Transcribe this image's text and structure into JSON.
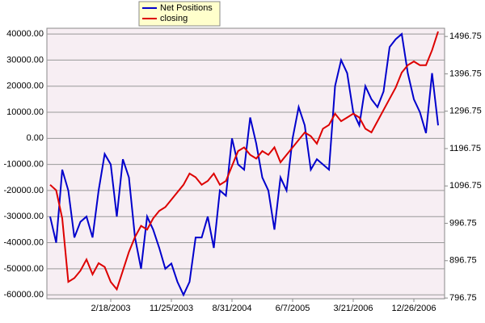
{
  "chart_data": {
    "type": "line",
    "categories": [
      null,
      null,
      null,
      null,
      null,
      null,
      null,
      null,
      null,
      null,
      "2/18/2003",
      null,
      null,
      null,
      null,
      null,
      null,
      null,
      null,
      null,
      "11/25/2003",
      null,
      null,
      null,
      null,
      null,
      null,
      null,
      null,
      null,
      "8/31/2004",
      null,
      null,
      null,
      null,
      null,
      null,
      null,
      null,
      null,
      "6/7/2005",
      null,
      null,
      null,
      null,
      null,
      null,
      null,
      null,
      null,
      "3/21/2006",
      null,
      null,
      null,
      null,
      null,
      null,
      null,
      null,
      null,
      "12/26/2006",
      null,
      null,
      null,
      null
    ],
    "series": [
      {
        "name": "Net Positions",
        "color": "#0000cc",
        "values": [
          -30000,
          -40000,
          -12000,
          -20000,
          -38000,
          -32000,
          -30000,
          -38000,
          -20000,
          -6000,
          -10000,
          -30000,
          -8000,
          -15000,
          -38000,
          -50000,
          -30000,
          -35000,
          -42000,
          -50000,
          -48000,
          -55000,
          -60000,
          -55000,
          -38000,
          -38000,
          -30000,
          -42000,
          -20000,
          -22000,
          0,
          -10000,
          -12000,
          8000,
          -2000,
          -15000,
          -20000,
          -35000,
          -15000,
          -20000,
          0,
          12000,
          5000,
          -12000,
          -8000,
          -10000,
          -12000,
          20000,
          30000,
          25000,
          10000,
          5000,
          20000,
          15000,
          12000,
          18000,
          35000,
          38000,
          40000,
          25000,
          15000,
          10000,
          2000,
          25000,
          5000
        ]
      },
      {
        "name": "closing",
        "color": "#dd0000",
        "axis": "y2",
        "values": [
          1100,
          1085,
          1010,
          840,
          850,
          870,
          900,
          860,
          890,
          880,
          840,
          820,
          870,
          920,
          960,
          990,
          980,
          1010,
          1030,
          1040,
          1060,
          1080,
          1100,
          1130,
          1120,
          1100,
          1110,
          1130,
          1100,
          1110,
          1150,
          1190,
          1200,
          1180,
          1170,
          1190,
          1180,
          1200,
          1160,
          1180,
          1200,
          1220,
          1240,
          1230,
          1210,
          1250,
          1260,
          1290,
          1270,
          1280,
          1290,
          1280,
          1250,
          1240,
          1270,
          1300,
          1330,
          1360,
          1400,
          1420,
          1430,
          1420,
          1420,
          1460,
          1510
        ]
      }
    ],
    "ylim": [
      -61500,
      42200
    ],
    "yticks": [
      {
        "value": -60000,
        "label": "-60000.00"
      },
      {
        "value": -50000,
        "label": "-50000.00"
      },
      {
        "value": -40000,
        "label": "-40000.00"
      },
      {
        "value": -30000,
        "label": "-30000.00"
      },
      {
        "value": -20000,
        "label": "-20000.00"
      },
      {
        "value": -10000,
        "label": "-10000.00"
      },
      {
        "value": 0,
        "label": "0.00"
      },
      {
        "value": 10000,
        "label": "10000.00"
      },
      {
        "value": 20000,
        "label": "20000.00"
      },
      {
        "value": 30000,
        "label": "30000.00"
      },
      {
        "value": 40000,
        "label": "40000.00"
      }
    ],
    "y2lim": [
      794.75,
      1518.75
    ],
    "y2ticks": [
      796.75,
      896.75,
      996.75,
      1096.75,
      1196.75,
      1296.75,
      1396.75,
      1496.75
    ],
    "grid": true,
    "legend": "top"
  }
}
